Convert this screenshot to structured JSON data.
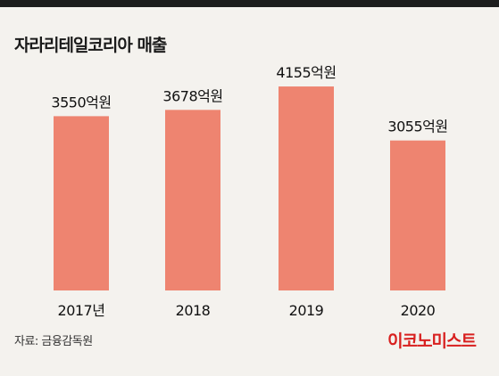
{
  "header": {
    "title": "자라리테일코리아 매출"
  },
  "footer": {
    "source": "자료: 금융감독원",
    "brand": "이코노미스트"
  },
  "colors": {
    "bar": "#ee8470",
    "top_bar": "#1d1d1d",
    "background": "#f4f2ee",
    "brand": "#d8201f"
  },
  "chart_data": {
    "type": "bar",
    "title": "자라리테일코리아 매출",
    "categories": [
      "2017년",
      "2018",
      "2019",
      "2020"
    ],
    "values": [
      3550,
      3678,
      4155,
      3055
    ],
    "value_labels": [
      "3550억원",
      "3678억원",
      "4155억원",
      "3055억원"
    ],
    "unit": "억원",
    "xlabel": "",
    "ylabel": "",
    "grid": false,
    "legend": "none"
  }
}
